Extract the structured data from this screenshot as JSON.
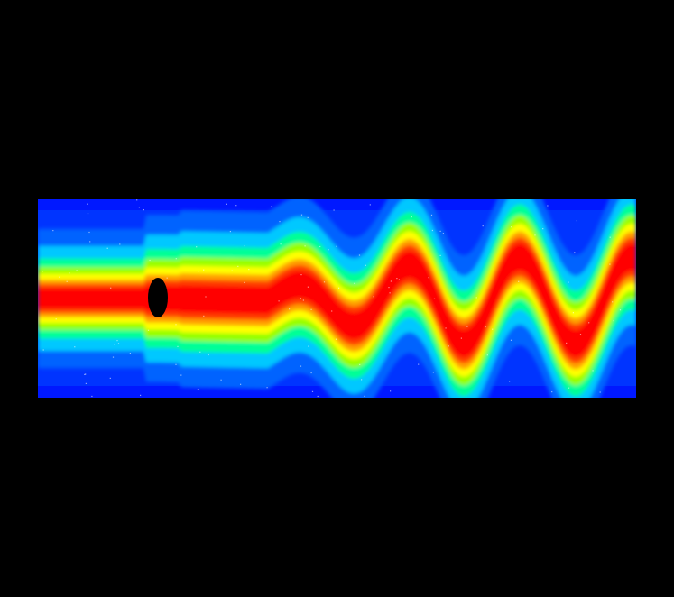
{
  "figure": {
    "background_color": "#000000",
    "colormap": [
      "#0000ff",
      "#0064ff",
      "#00c8ff",
      "#00ff96",
      "#96ff00",
      "#ffff00",
      "#ffa000",
      "#ff3c00",
      "#ff0000"
    ],
    "obstacle_color": "#000000",
    "speckle_color": "#ffffff"
  }
}
